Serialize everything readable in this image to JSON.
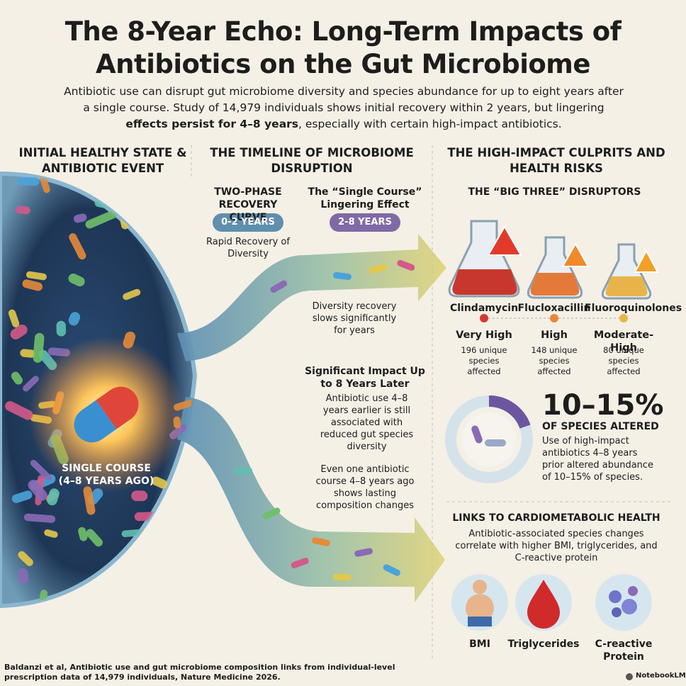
{
  "header": {
    "title": "The 8-Year Echo: Long-Term Impacts of Antibiotics on the Gut Microbiome",
    "intro_before": "Antibiotic use can disrupt gut microbiome diversity and species abundance for up to eight years after a single course. Study of 14,979 individuals shows initial recovery within 2 years, but lingering",
    "intro_bold": "effects persist for 4–8 years",
    "intro_after": ", especially with certain high-impact antibiotics."
  },
  "column1": {
    "heading": "INITIAL HEALTHY STATE & ANTIBIOTIC EVENT",
    "pill_label": "SINGLE COURSE (4–8 YEARS AGO)"
  },
  "column2": {
    "heading": "THE TIMELINE OF MICROBIOME DISRUPTION",
    "phase1": {
      "title": "TWO-PHASE RECOVERY CURVE",
      "badge": "0-2 YEARS",
      "text": "Rapid Recovery of Diversity"
    },
    "phase2": {
      "title": "The “Single Course” Lingering Effect",
      "badge": "2-8 YEARS"
    },
    "slow_text": "Diversity recovery slows significantly for years",
    "impact_title": "Significant Impact Up to 8 Years Later",
    "impact_text": "Antibiotic use 4–8 years earlier is still associated with reduced gut species diversity",
    "lasting_text": "Even one antibiotic course 4–8 years ago shows lasting composition changes"
  },
  "column3": {
    "heading": "THE HIGH-IMPACT CULPRITS AND HEALTH RISKS",
    "subheading": "THE “BIG THREE” DISRUPTORS",
    "drugs": [
      {
        "name": "Clindamycin",
        "level": "Very High",
        "species": "196 unique species affected"
      },
      {
        "name": "Flucloxacillin",
        "level": "High",
        "species": "148 unique species affected"
      },
      {
        "name": "Fluoroquinolones",
        "level": "Moderate-High",
        "species": "80 unique species affected"
      }
    ],
    "altered": {
      "value": "10–15%",
      "label": "OF SPECIES ALTERED",
      "text": "Use of high-impact antibiotics 4–8 years prior altered abundance of 10–15% of species."
    },
    "links": {
      "heading": "LINKS TO CARDIOMETABOLIC HEALTH",
      "text": "Antibiotic-associated species changes correlate with higher BMI, triglycerides, and C-reactive protein",
      "items": [
        "BMI",
        "Triglycerides",
        "C-reactive Protein"
      ]
    }
  },
  "footer": {
    "citation": "Baldanzi et al, Antibiotic use and gut microbiome composition links from individual-level prescription data of 14,979 individuals, Nature Medicine 2026.",
    "brand": "NotebookLM"
  }
}
